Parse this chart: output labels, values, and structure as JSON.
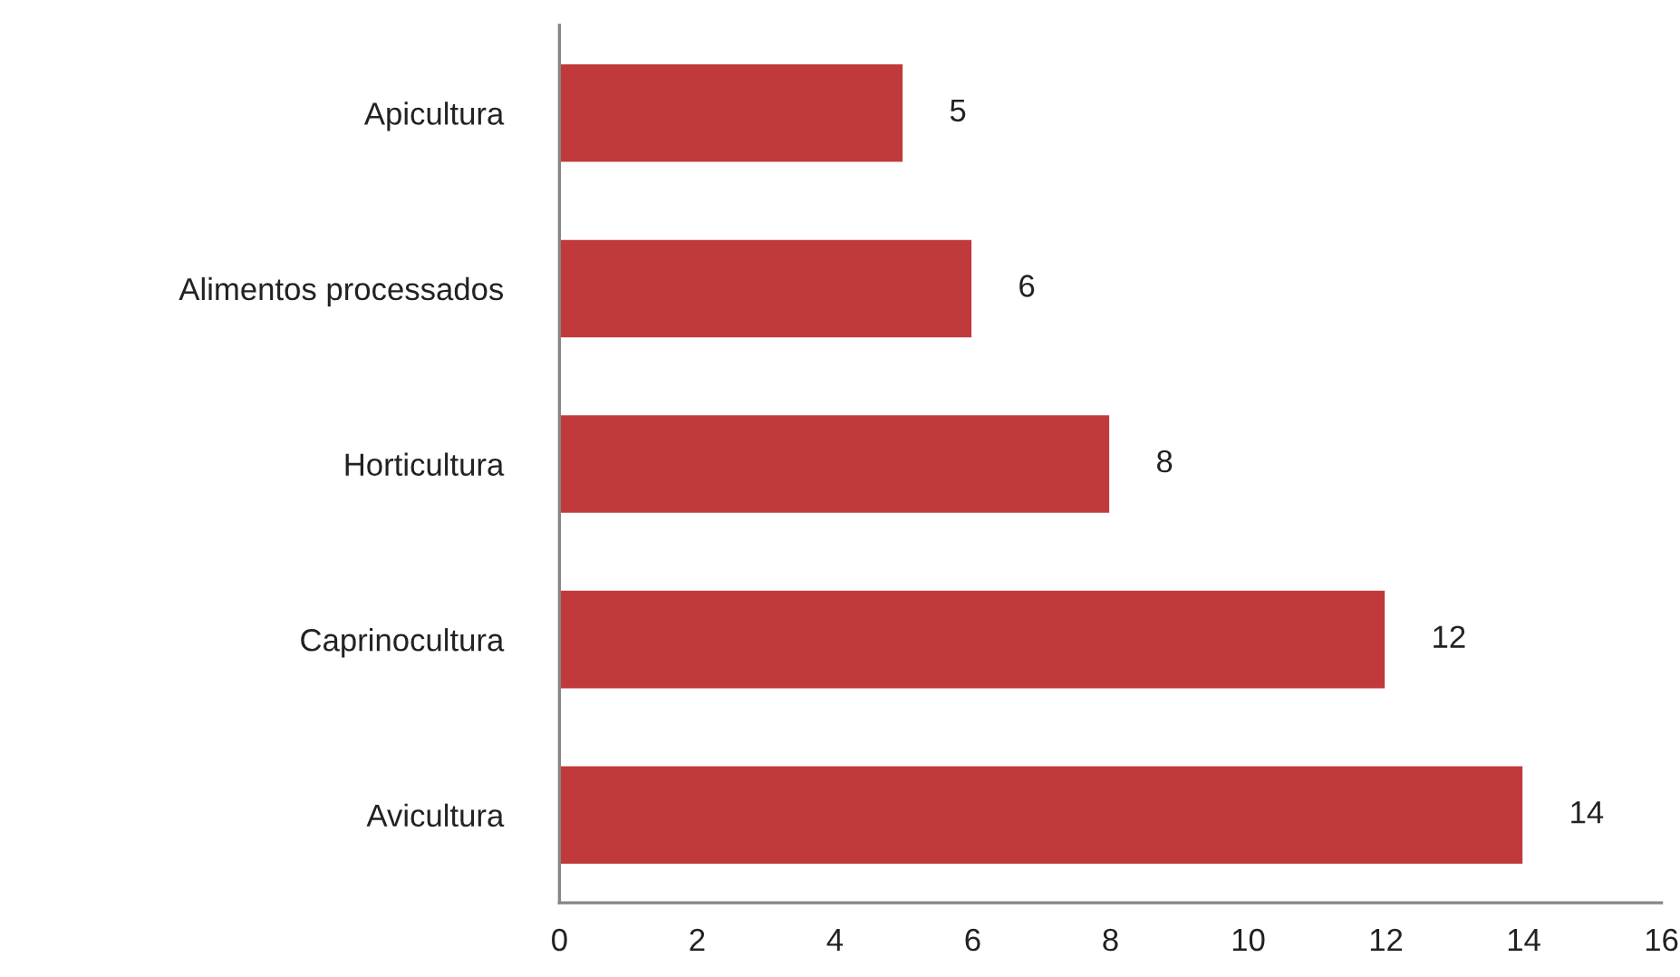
{
  "chart_data": {
    "type": "bar",
    "orientation": "horizontal",
    "categories": [
      "Apicultura",
      "Alimentos processados",
      "Horticultura",
      "Caprinocultura",
      "Avicultura"
    ],
    "values": [
      5,
      6,
      8,
      12,
      14
    ],
    "color": "#c0393b",
    "xlim": [
      0,
      16
    ],
    "xticks": [
      0,
      2,
      4,
      6,
      8,
      10,
      12,
      14,
      16
    ],
    "data_labels": true,
    "grid": false,
    "legend": false
  }
}
